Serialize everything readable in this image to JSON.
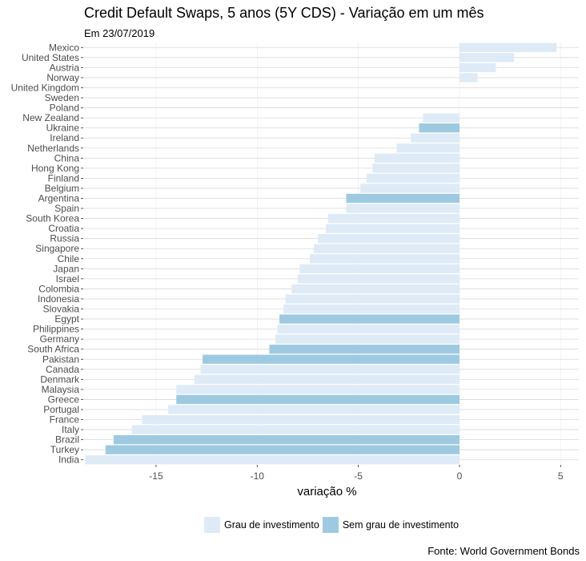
{
  "chart_data": {
    "type": "bar",
    "orientation": "horizontal",
    "title": "Credit Default Swaps, 5 anos (5Y CDS) - Variação em um mês",
    "subtitle": "Em 23/07/2019",
    "xlabel": "variação %",
    "ylabel": "",
    "xlim": [
      -18.6,
      5.9
    ],
    "xticks": [
      -15,
      -10,
      -5,
      0,
      5
    ],
    "xtick_labels": [
      "-15",
      "-10",
      "-5",
      "0",
      "5"
    ],
    "source": "Fonte: World Government Bonds",
    "legend": [
      {
        "key": "grade",
        "label": "Grau de investimento",
        "color": "#deebf7"
      },
      {
        "key": "nongrade",
        "label": "Sem grau de investimento",
        "color": "#9ecae1"
      }
    ],
    "categories": [
      "Mexico",
      "United States",
      "Austria",
      "Norway",
      "United Kingdom",
      "Sweden",
      "Poland",
      "New Zealand",
      "Ukraine",
      "Ireland",
      "Netherlands",
      "China",
      "Hong Kong",
      "Finland",
      "Belgium",
      "Argentina",
      "Spain",
      "South Korea",
      "Croatia",
      "Russia",
      "Singapore",
      "Chile",
      "Japan",
      "Israel",
      "Colombia",
      "Indonesia",
      "Slovakia",
      "Egypt",
      "Philippines",
      "Germany",
      "South Africa",
      "Pakistan",
      "Canada",
      "Denmark",
      "Malaysia",
      "Greece",
      "Portugal",
      "France",
      "Italy",
      "Brazil",
      "Turkey",
      "India"
    ],
    "values": [
      4.8,
      2.7,
      1.8,
      0.9,
      0,
      0,
      0,
      -1.8,
      -2.0,
      -2.4,
      -3.1,
      -4.2,
      -4.3,
      -4.6,
      -4.9,
      -5.6,
      -5.6,
      -6.5,
      -6.6,
      -7.0,
      -7.2,
      -7.4,
      -7.9,
      -8.0,
      -8.3,
      -8.6,
      -8.7,
      -8.9,
      -9.0,
      -9.1,
      -9.4,
      -12.7,
      -12.8,
      -13.1,
      -14.0,
      -14.0,
      -14.4,
      -15.7,
      -16.2,
      -17.1,
      -17.5,
      -18.5
    ],
    "groups": [
      "grade",
      "grade",
      "grade",
      "grade",
      "grade",
      "grade",
      "grade",
      "grade",
      "nongrade",
      "grade",
      "grade",
      "grade",
      "grade",
      "grade",
      "grade",
      "nongrade",
      "grade",
      "grade",
      "grade",
      "grade",
      "grade",
      "grade",
      "grade",
      "grade",
      "grade",
      "grade",
      "grade",
      "nongrade",
      "grade",
      "grade",
      "nongrade",
      "nongrade",
      "grade",
      "grade",
      "grade",
      "nongrade",
      "grade",
      "grade",
      "grade",
      "nongrade",
      "nongrade",
      "grade"
    ]
  }
}
